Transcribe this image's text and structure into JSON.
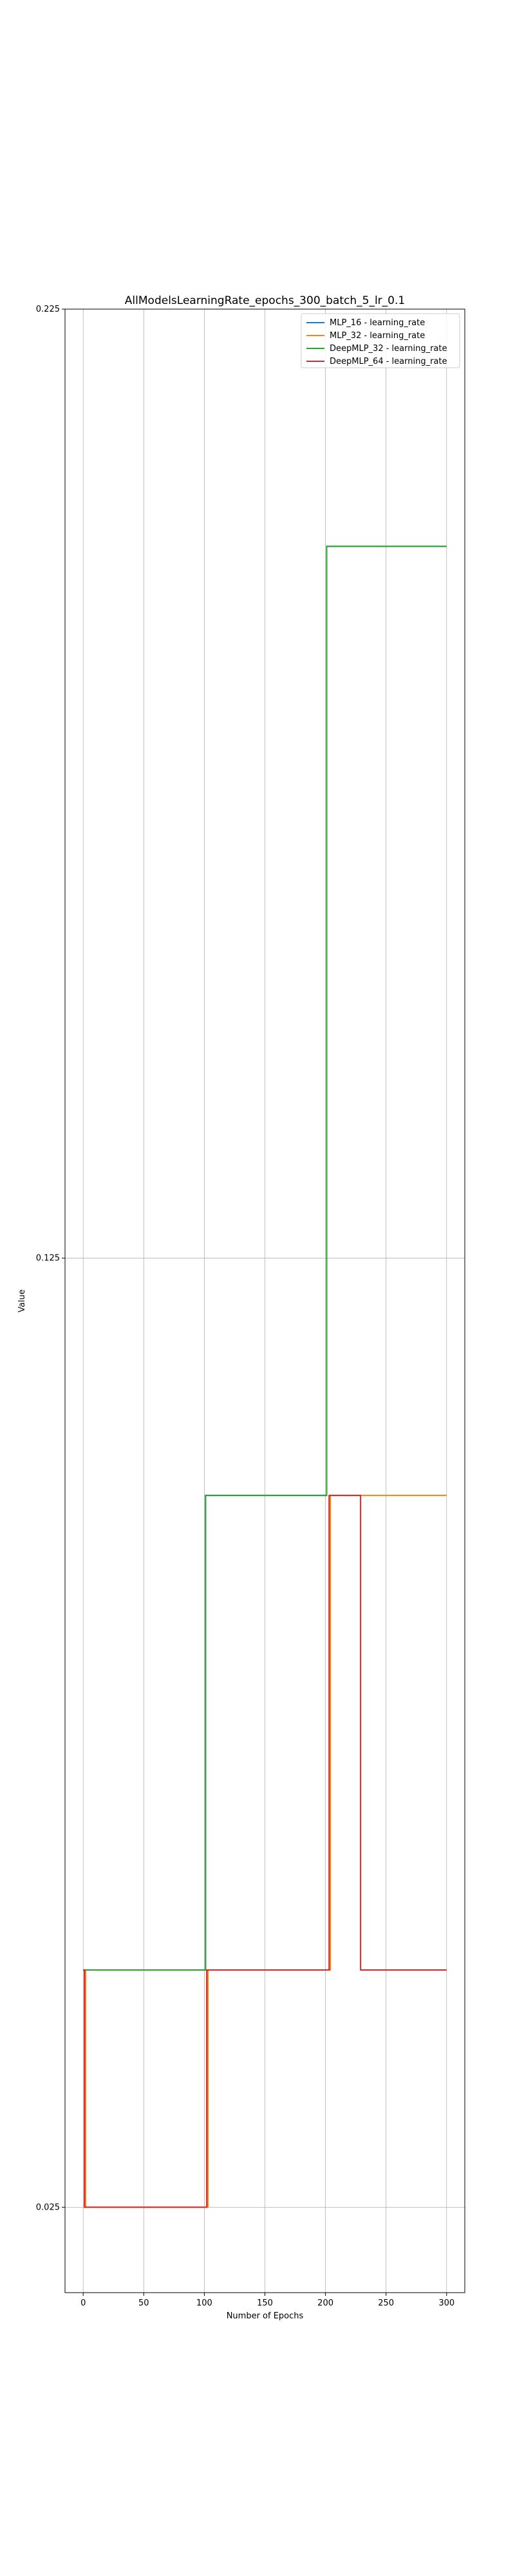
{
  "chart_data": {
    "type": "line",
    "title": "AllModelsLearningRate_epochs_300_batch_5_lr_0.1",
    "xlabel": "Number of Epochs",
    "ylabel": "Value",
    "xlim": [
      -15,
      315
    ],
    "ylim": [
      0.016,
      0.225
    ],
    "x_ticks": [
      0,
      50,
      100,
      150,
      200,
      250,
      300
    ],
    "y_ticks": [
      0.025,
      0.125,
      0.225
    ],
    "y_tick_labels": [
      "0.025",
      "0.125",
      "0.225"
    ],
    "grid": true,
    "legend_position": "top-right",
    "step": "post",
    "series": [
      {
        "name": "MLP_16 - learning_rate",
        "color": "#1f77b4",
        "x": [
          0,
          1,
          100,
          101,
          200,
          201,
          300
        ],
        "y": [
          0.05,
          0.05,
          0.05,
          0.1,
          0.1,
          0.2,
          0.2
        ]
      },
      {
        "name": "MLP_32 - learning_rate",
        "color": "#ff7f0e",
        "x": [
          0,
          2,
          102,
          103,
          203,
          204,
          300
        ],
        "y": [
          0.05,
          0.025,
          0.025,
          0.05,
          0.05,
          0.1,
          0.1
        ]
      },
      {
        "name": "DeepMLP_32 - learning_rate",
        "color": "#2ca02c",
        "x": [
          0,
          1,
          100,
          101,
          200,
          201,
          300
        ],
        "y": [
          0.05,
          0.05,
          0.05,
          0.1,
          0.1,
          0.2,
          0.2
        ]
      },
      {
        "name": "DeepMLP_64 - learning_rate",
        "color": "#d62728",
        "x": [
          0,
          1,
          101,
          102,
          202,
          203,
          228,
          229,
          300
        ],
        "y": [
          0.05,
          0.025,
          0.025,
          0.05,
          0.05,
          0.1,
          0.1,
          0.05,
          0.05
        ]
      }
    ]
  }
}
